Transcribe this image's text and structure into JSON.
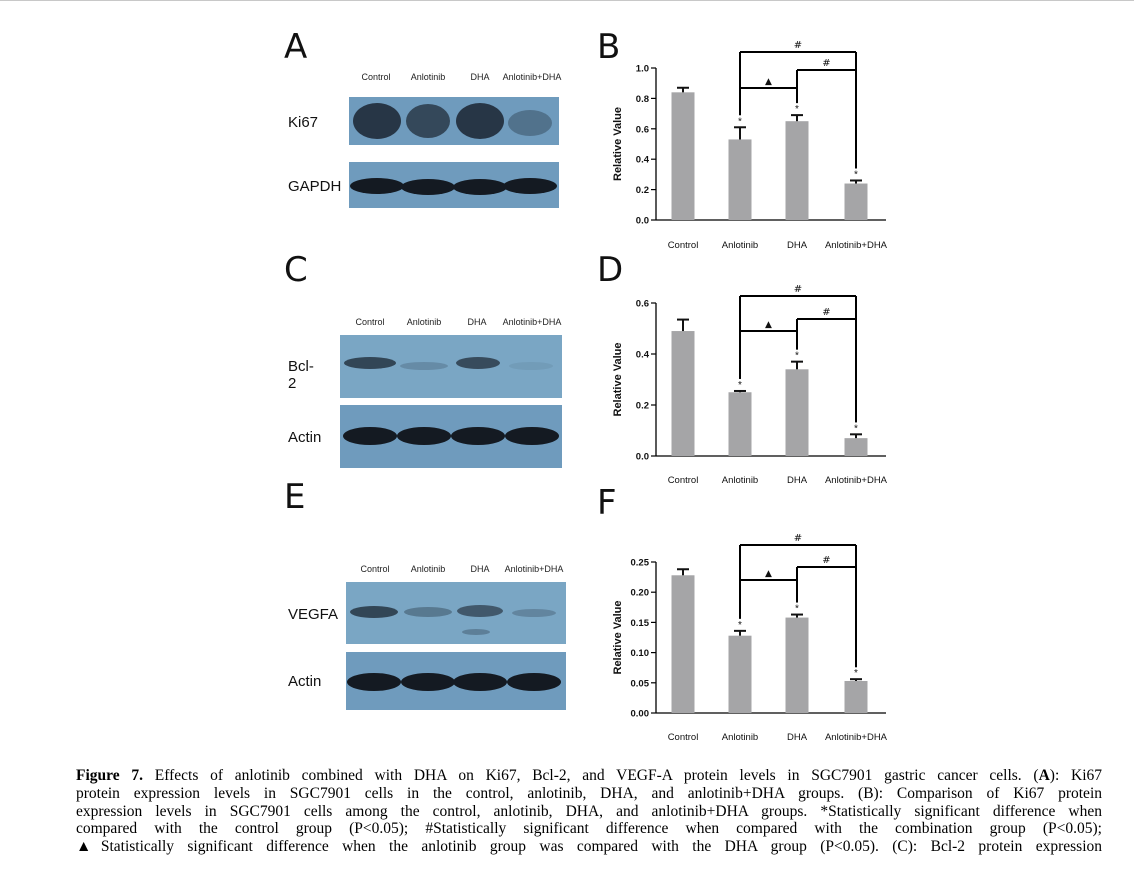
{
  "panels": {
    "A": {
      "label": "A",
      "lanes": [
        "Control",
        "Anlotinib",
        "DHA",
        "Anlotinib+DHA"
      ],
      "rows": [
        {
          "label": "Ki67",
          "intensity": [
            0.9,
            0.75,
            0.9,
            0.35
          ]
        },
        {
          "label": "GAPDH",
          "intensity": [
            1,
            1,
            1,
            1
          ]
        }
      ]
    },
    "C": {
      "label": "C",
      "lanes": [
        "Control",
        "Anlotinib",
        "DHA",
        "Anlotinib+DHA"
      ],
      "rows": [
        {
          "label": "Bcl-2",
          "intensity": [
            0.8,
            0.25,
            0.7,
            0.1
          ]
        },
        {
          "label": "Actin",
          "intensity": [
            1,
            1,
            1,
            1
          ]
        }
      ]
    },
    "E": {
      "label": "E",
      "lanes": [
        "Control",
        "Anlotinib",
        "DHA",
        "Anlotinib+DHA"
      ],
      "rows": [
        {
          "label": "VEGFA",
          "intensity": [
            0.75,
            0.4,
            0.6,
            0.25
          ]
        },
        {
          "label": "Actin",
          "intensity": [
            1,
            1,
            1,
            1
          ]
        }
      ]
    },
    "B": {
      "label": "B"
    },
    "D": {
      "label": "D"
    },
    "F": {
      "label": "F"
    }
  },
  "chart_data": [
    {
      "id": "B",
      "type": "bar",
      "categories": [
        "Control",
        "Anlotinib",
        "DHA",
        "Anlotinib+DHA"
      ],
      "values": [
        0.84,
        0.53,
        0.65,
        0.24
      ],
      "errors": [
        0.03,
        0.08,
        0.04,
        0.02
      ],
      "star": [
        false,
        true,
        true,
        true
      ],
      "ylabel": "Relative Value",
      "ylim": [
        0,
        1.0
      ],
      "yticks": [
        0.0,
        0.2,
        0.4,
        0.6,
        0.8,
        1.0
      ],
      "ytick_labels": [
        "0.0",
        "0.2",
        "0.4",
        "0.6",
        "0.8",
        "1.0"
      ],
      "brackets": [
        {
          "from": 1,
          "to": 3,
          "level": 1,
          "symbol": "#"
        },
        {
          "from": 2,
          "to": 3,
          "level": 2,
          "symbol": "#"
        },
        {
          "from": 1,
          "to": 2,
          "level": 3,
          "symbol": "▲"
        }
      ],
      "star_symbol": "*",
      "grid": false
    },
    {
      "id": "D",
      "type": "bar",
      "categories": [
        "Control",
        "Anlotinib",
        "DHA",
        "Anlotinib+DHA"
      ],
      "values": [
        0.49,
        0.25,
        0.34,
        0.07
      ],
      "errors": [
        0.045,
        0.005,
        0.03,
        0.015
      ],
      "star": [
        false,
        true,
        true,
        true
      ],
      "ylabel": "Relative Value",
      "ylim": [
        0,
        0.6
      ],
      "yticks": [
        0.0,
        0.2,
        0.4,
        0.6
      ],
      "ytick_labels": [
        "0.0",
        "0.2",
        "0.4",
        "0.6"
      ],
      "brackets": [
        {
          "from": 1,
          "to": 3,
          "level": 1,
          "symbol": "#"
        },
        {
          "from": 2,
          "to": 3,
          "level": 2,
          "symbol": "#"
        },
        {
          "from": 1,
          "to": 2,
          "level": 3,
          "symbol": "▲"
        }
      ],
      "star_symbol": "*",
      "grid": false
    },
    {
      "id": "F",
      "type": "bar",
      "categories": [
        "Control",
        "Anlotinib",
        "DHA",
        "Anlotinib+DHA"
      ],
      "values": [
        0.228,
        0.128,
        0.158,
        0.053
      ],
      "errors": [
        0.01,
        0.008,
        0.005,
        0.003
      ],
      "star": [
        false,
        true,
        true,
        true
      ],
      "ylabel": "Relative Value",
      "ylim": [
        0,
        0.25
      ],
      "yticks": [
        0.0,
        0.05,
        0.1,
        0.15,
        0.2,
        0.25
      ],
      "ytick_labels": [
        "0.00",
        "0.05",
        "0.10",
        "0.15",
        "0.20",
        "0.25"
      ],
      "brackets": [
        {
          "from": 1,
          "to": 3,
          "level": 1,
          "symbol": "#"
        },
        {
          "from": 2,
          "to": 3,
          "level": 2,
          "symbol": "#"
        },
        {
          "from": 1,
          "to": 2,
          "level": 3,
          "symbol": "▲"
        }
      ],
      "star_symbol": "*",
      "grid": false
    }
  ],
  "caption": {
    "fig_label": "Figure 7.",
    "line1_rest": " Effects of anlotinib combined with DHA on Ki67, Bcl-2, and VEGF-A protein levels in SGC7901 gastric cancer cells. (",
    "line1_boldA": "A",
    "line1_tail": "): Ki67",
    "line2": "protein expression levels in SGC7901 cells in the control, anlotinib, DHA, and anlotinib+DHA groups. (B): Comparison of Ki67 protein",
    "line3": "expression levels in SGC7901 cells among the control, anlotinib, DHA, and anlotinib+DHA groups. *Statistically significant difference when",
    "line4": "compared with the control group (P<0.05); #Statistically significant difference when compared with the combination group (P<0.05);",
    "line5": "▲Statistically significant difference when the anlotinib group was compared with the DHA group (P<0.05). (C): Bcl-2 protein expression"
  }
}
